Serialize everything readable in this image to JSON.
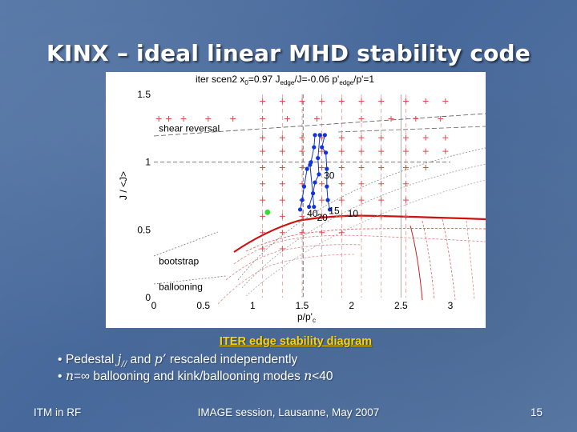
{
  "slide": {
    "title": "KINX – ideal linear MHD stability code",
    "caption": "ITER edge stability diagram",
    "bullets": [
      {
        "prefix": "Pedestal ",
        "var1": "j",
        "var1_sub": "//",
        "mid": " and ",
        "var2": "p’",
        "suffix": " rescaled independently"
      },
      {
        "var1": "n",
        "mid": "=∞ ballooning and kink/ballooning modes ",
        "var2": "n",
        "suffix": "<40"
      }
    ],
    "footer": {
      "left": "ITM in RF",
      "center": "IMAGE session, Lausanne, May 2007",
      "right": "15"
    }
  },
  "chart_data": {
    "type": "scatter",
    "header": {
      "t1": "iter scen2 x",
      "t1_sub": "0",
      "t2": "=0.97 J",
      "t2_sub": "edge",
      "t3": "/J=-0.06 p'",
      "t3_sub": "edge",
      "t4": "/p'=1"
    },
    "xlabel": "p/p'",
    "xlabel_sub": "c",
    "ylabel": "J / <J>",
    "xlim": [
      0,
      3
    ],
    "ylim": [
      0,
      1.5
    ],
    "xticks": [
      {
        "v": 0,
        "label": "0"
      },
      {
        "v": 0.5,
        "label": "0.5"
      },
      {
        "v": 1,
        "label": "1"
      },
      {
        "v": 1.5,
        "label": "1.5"
      },
      {
        "v": 2,
        "label": "2"
      },
      {
        "v": 2.5,
        "label": "2.5"
      },
      {
        "v": 3,
        "label": "3"
      }
    ],
    "yticks": [
      {
        "v": 0,
        "label": "0"
      },
      {
        "v": 0.5,
        "label": "0.5"
      },
      {
        "v": 1,
        "label": "1"
      },
      {
        "v": 1.5,
        "label": "1.5"
      }
    ],
    "annotations": [
      {
        "text": "shear reversal",
        "x": 0.05,
        "y": 1.25
      },
      {
        "text": "bootstrap",
        "x": 0.05,
        "y": 0.27
      },
      {
        "text": "ballooning",
        "x": 0.05,
        "y": 0.08
      }
    ],
    "mode_labels": [
      {
        "text": "30",
        "x": 1.72,
        "y": 0.9
      },
      {
        "text": "40",
        "x": 1.55,
        "y": 0.62
      },
      {
        "text": "20",
        "x": 1.65,
        "y": 0.59
      },
      {
        "text": "15",
        "x": 1.77,
        "y": 0.64
      },
      {
        "text": "10",
        "x": 1.96,
        "y": 0.62
      }
    ],
    "stable_points": [
      {
        "x": 0.05,
        "y": 1.32
      },
      {
        "x": 0.15,
        "y": 1.32
      },
      {
        "x": 0.3,
        "y": 1.32
      },
      {
        "x": 0.55,
        "y": 1.32
      },
      {
        "x": 0.8,
        "y": 1.32
      },
      {
        "x": 1.1,
        "y": 1.32
      },
      {
        "x": 1.35,
        "y": 1.32
      },
      {
        "x": 1.65,
        "y": 1.32
      },
      {
        "x": 2.1,
        "y": 1.32
      },
      {
        "x": 2.4,
        "y": 1.32
      },
      {
        "x": 2.65,
        "y": 1.32
      },
      {
        "x": 2.9,
        "y": 1.32
      },
      {
        "x": 1.1,
        "y": 1.45
      },
      {
        "x": 1.3,
        "y": 1.45
      },
      {
        "x": 1.5,
        "y": 1.45
      },
      {
        "x": 1.7,
        "y": 1.45
      },
      {
        "x": 1.9,
        "y": 1.45
      },
      {
        "x": 2.1,
        "y": 1.45
      },
      {
        "x": 2.3,
        "y": 1.45
      },
      {
        "x": 2.55,
        "y": 1.45
      },
      {
        "x": 2.75,
        "y": 1.45
      },
      {
        "x": 2.95,
        "y": 1.45
      },
      {
        "x": 1.1,
        "y": 1.18
      },
      {
        "x": 1.3,
        "y": 1.18
      },
      {
        "x": 1.5,
        "y": 1.18
      },
      {
        "x": 1.7,
        "y": 1.18
      },
      {
        "x": 1.9,
        "y": 1.18
      },
      {
        "x": 2.1,
        "y": 1.18
      },
      {
        "x": 2.3,
        "y": 1.18
      },
      {
        "x": 2.55,
        "y": 1.18
      },
      {
        "x": 2.75,
        "y": 1.18
      },
      {
        "x": 2.95,
        "y": 1.18
      },
      {
        "x": 1.1,
        "y": 1.08
      },
      {
        "x": 1.3,
        "y": 1.08
      },
      {
        "x": 1.5,
        "y": 1.08
      },
      {
        "x": 1.7,
        "y": 1.08
      },
      {
        "x": 1.9,
        "y": 1.08
      },
      {
        "x": 2.1,
        "y": 1.08
      },
      {
        "x": 2.3,
        "y": 1.08
      },
      {
        "x": 2.55,
        "y": 1.08
      },
      {
        "x": 2.75,
        "y": 1.08
      },
      {
        "x": 2.95,
        "y": 1.08
      },
      {
        "x": 1.1,
        "y": 0.96
      },
      {
        "x": 1.3,
        "y": 0.96
      },
      {
        "x": 1.5,
        "y": 0.96
      },
      {
        "x": 1.7,
        "y": 0.96
      },
      {
        "x": 1.9,
        "y": 0.96
      },
      {
        "x": 2.1,
        "y": 0.96
      },
      {
        "x": 2.3,
        "y": 0.96
      },
      {
        "x": 2.55,
        "y": 0.96
      },
      {
        "x": 2.75,
        "y": 0.96
      },
      {
        "x": 1.1,
        "y": 0.84
      },
      {
        "x": 1.3,
        "y": 0.84
      },
      {
        "x": 1.5,
        "y": 0.84
      },
      {
        "x": 1.7,
        "y": 0.84
      },
      {
        "x": 1.9,
        "y": 0.84
      },
      {
        "x": 2.1,
        "y": 0.84
      },
      {
        "x": 2.3,
        "y": 0.84
      },
      {
        "x": 2.55,
        "y": 0.84
      },
      {
        "x": 1.1,
        "y": 0.72
      },
      {
        "x": 1.3,
        "y": 0.72
      },
      {
        "x": 1.5,
        "y": 0.72
      },
      {
        "x": 1.7,
        "y": 0.72
      },
      {
        "x": 1.9,
        "y": 0.72
      },
      {
        "x": 2.1,
        "y": 0.72
      },
      {
        "x": 2.3,
        "y": 0.72
      },
      {
        "x": 2.55,
        "y": 0.72
      },
      {
        "x": 1.1,
        "y": 0.6
      },
      {
        "x": 1.3,
        "y": 0.6
      },
      {
        "x": 1.5,
        "y": 0.6
      },
      {
        "x": 1.7,
        "y": 0.6
      },
      {
        "x": 1.9,
        "y": 0.6
      },
      {
        "x": 2.1,
        "y": 0.6
      },
      {
        "x": 2.3,
        "y": 0.6
      },
      {
        "x": 2.55,
        "y": 0.6
      },
      {
        "x": 1.1,
        "y": 0.48
      },
      {
        "x": 1.3,
        "y": 0.48
      },
      {
        "x": 1.5,
        "y": 0.48
      },
      {
        "x": 1.7,
        "y": 0.48
      },
      {
        "x": 1.9,
        "y": 0.48
      },
      {
        "x": 1.1,
        "y": 0.36
      },
      {
        "x": 1.3,
        "y": 0.36
      }
    ],
    "unstable_points": [
      {
        "x": 1.63,
        "y": 1.2
      },
      {
        "x": 1.68,
        "y": 1.2
      },
      {
        "x": 1.73,
        "y": 1.2
      },
      {
        "x": 1.62,
        "y": 1.11
      },
      {
        "x": 1.7,
        "y": 1.11
      },
      {
        "x": 1.59,
        "y": 1.0
      },
      {
        "x": 1.66,
        "y": 1.03
      },
      {
        "x": 1.74,
        "y": 1.07
      },
      {
        "x": 1.55,
        "y": 0.95
      },
      {
        "x": 1.58,
        "y": 0.98
      },
      {
        "x": 1.67,
        "y": 0.91
      },
      {
        "x": 1.75,
        "y": 0.95
      },
      {
        "x": 1.52,
        "y": 0.82
      },
      {
        "x": 1.63,
        "y": 0.85
      },
      {
        "x": 1.75,
        "y": 0.82
      },
      {
        "x": 1.5,
        "y": 0.72
      },
      {
        "x": 1.61,
        "y": 0.77
      },
      {
        "x": 1.76,
        "y": 0.72
      },
      {
        "x": 1.48,
        "y": 0.65
      },
      {
        "x": 1.57,
        "y": 0.67
      },
      {
        "x": 1.62,
        "y": 0.67
      },
      {
        "x": 1.78,
        "y": 0.65
      }
    ],
    "reference_point": {
      "x": 1.15,
      "y": 0.63
    },
    "dashed_lines": [
      {
        "orient": "h",
        "value": 1.0
      },
      {
        "orient": "v",
        "value": 1.51
      }
    ]
  }
}
